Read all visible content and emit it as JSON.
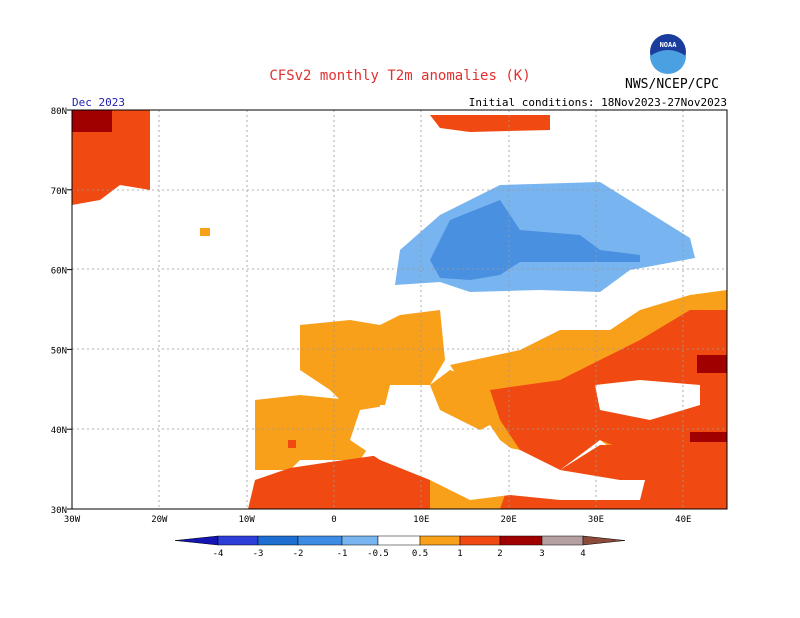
{
  "header": {
    "title": "CFSv2 monthly T2m anomalies (K)",
    "agency": "NWS/NCEP/CPC",
    "logo_text": "NOAA",
    "month": "Dec 2023",
    "initial_conditions": "Initial conditions: 18Nov2023-27Nov2023"
  },
  "axes": {
    "lat_labels": [
      "80N",
      "70N",
      "60N",
      "50N",
      "40N",
      "30N"
    ],
    "lon_labels": [
      "30W",
      "20W",
      "10W",
      "0",
      "10E",
      "20E",
      "30E",
      "40E"
    ]
  },
  "colorbar": {
    "labels": [
      "-4",
      "-3",
      "-2",
      "-1",
      "-0.5",
      "0.5",
      "1",
      "2",
      "3",
      "4"
    ]
  }
}
